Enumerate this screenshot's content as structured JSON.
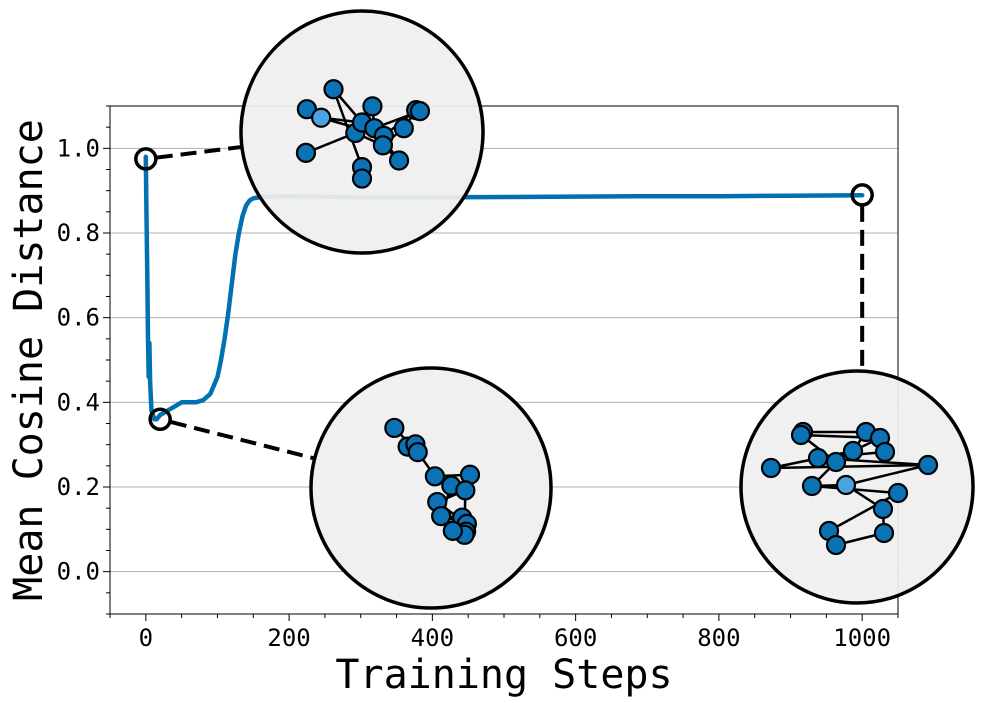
{
  "chart_data": {
    "type": "line",
    "title": "",
    "xlabel": "Training Steps",
    "ylabel": "Mean Cosine Distance",
    "xlim": [
      -50,
      1050
    ],
    "ylim": [
      -0.1,
      1.1
    ],
    "xticks": [
      0,
      200,
      400,
      600,
      800,
      1000
    ],
    "xtick_labels": [
      "0",
      "200",
      "400",
      "600",
      "800",
      "1000"
    ],
    "yticks": [
      0.0,
      0.2,
      0.4,
      0.6,
      0.8,
      1.0
    ],
    "ytick_labels": [
      "0.0",
      "0.2",
      "0.4",
      "0.6",
      "0.8",
      "1.0"
    ],
    "grid": "horizontal",
    "series": [
      {
        "color": "#0072b2",
        "x": [
          0,
          1,
          2,
          3,
          4,
          5,
          6,
          8,
          10,
          12,
          15,
          20,
          30,
          40,
          50,
          60,
          70,
          80,
          90,
          100,
          105,
          110,
          115,
          120,
          125,
          130,
          135,
          140,
          145,
          150,
          160,
          175,
          200,
          250,
          300,
          400,
          500,
          600,
          700,
          800,
          900,
          1000
        ],
        "y": [
          0.98,
          0.84,
          0.7,
          0.55,
          0.46,
          0.54,
          0.45,
          0.38,
          0.37,
          0.36,
          0.36,
          0.37,
          0.38,
          0.39,
          0.4,
          0.4,
          0.4,
          0.405,
          0.42,
          0.46,
          0.5,
          0.55,
          0.61,
          0.68,
          0.75,
          0.8,
          0.84,
          0.865,
          0.877,
          0.882,
          0.885,
          0.886,
          0.887,
          0.886,
          0.884,
          0.884,
          0.885,
          0.886,
          0.887,
          0.887,
          0.888,
          0.889
        ]
      }
    ],
    "markers": [
      {
        "x": 0,
        "y": 0.975
      },
      {
        "x": 20,
        "y": 0.36
      },
      {
        "x": 1000,
        "y": 0.89
      }
    ],
    "insets": [
      {
        "anchor": 0,
        "nodes": [
          [
            -0.3,
            -0.45
          ],
          [
            -0.58,
            -0.24
          ],
          [
            -0.43,
            -0.15
          ],
          [
            0.11,
            -0.27
          ],
          [
            -0.07,
            0.01
          ],
          [
            0.0,
            -0.1
          ],
          [
            0.13,
            -0.04
          ],
          [
            0.23,
            0.04
          ],
          [
            0.44,
            -0.04
          ],
          [
            0.57,
            -0.23
          ],
          [
            0.61,
            -0.22
          ],
          [
            0.22,
            0.14
          ],
          [
            0.39,
            0.3
          ],
          [
            0.0,
            0.37
          ],
          [
            0.0,
            0.49
          ],
          [
            -0.59,
            0.22
          ]
        ],
        "highlight": 2,
        "edges": [
          [
            0,
            5
          ],
          [
            0,
            13
          ],
          [
            1,
            2
          ],
          [
            2,
            5
          ],
          [
            2,
            7
          ],
          [
            3,
            5
          ],
          [
            3,
            6
          ],
          [
            4,
            11
          ],
          [
            5,
            6
          ],
          [
            6,
            10
          ],
          [
            7,
            9
          ],
          [
            8,
            9
          ],
          [
            9,
            10
          ],
          [
            11,
            12
          ],
          [
            13,
            14
          ],
          [
            15,
            4
          ],
          [
            11,
            8
          ],
          [
            6,
            12
          ]
        ]
      },
      {
        "anchor": 1,
        "nodes": [
          [
            -0.47,
            -0.77
          ],
          [
            -0.3,
            -0.53
          ],
          [
            -0.2,
            -0.56
          ],
          [
            -0.17,
            -0.46
          ],
          [
            0.05,
            -0.15
          ],
          [
            0.26,
            -0.03
          ],
          [
            0.5,
            -0.17
          ],
          [
            0.44,
            0.03
          ],
          [
            0.08,
            0.18
          ],
          [
            0.13,
            0.36
          ],
          [
            0.4,
            0.38
          ],
          [
            0.46,
            0.46
          ],
          [
            0.45,
            0.56
          ],
          [
            0.43,
            0.6
          ],
          [
            0.28,
            0.55
          ]
        ],
        "highlight": -1,
        "edges": [
          [
            0,
            3
          ],
          [
            1,
            2
          ],
          [
            2,
            3
          ],
          [
            3,
            4
          ],
          [
            4,
            5
          ],
          [
            5,
            9
          ],
          [
            6,
            4
          ],
          [
            7,
            8
          ],
          [
            8,
            11
          ],
          [
            9,
            10
          ],
          [
            10,
            11
          ],
          [
            11,
            12
          ],
          [
            12,
            13
          ],
          [
            13,
            14
          ],
          [
            14,
            10
          ],
          [
            7,
            13
          ],
          [
            9,
            11
          ]
        ]
      },
      {
        "anchor": 2,
        "nodes": [
          [
            -0.54,
            -0.55
          ],
          [
            -0.56,
            -0.52
          ],
          [
            0.09,
            -0.55
          ],
          [
            0.23,
            -0.49
          ],
          [
            0.28,
            -0.35
          ],
          [
            -0.04,
            -0.36
          ],
          [
            -0.39,
            -0.29
          ],
          [
            -0.21,
            -0.25
          ],
          [
            -0.86,
            -0.19
          ],
          [
            0.71,
            -0.22
          ],
          [
            -0.45,
            -0.01
          ],
          [
            -0.11,
            -0.02
          ],
          [
            0.41,
            0.06
          ],
          [
            0.26,
            0.22
          ],
          [
            -0.28,
            0.44
          ],
          [
            0.27,
            0.46
          ],
          [
            -0.21,
            0.58
          ]
        ],
        "highlight": 11,
        "edges": [
          [
            0,
            2
          ],
          [
            1,
            3
          ],
          [
            2,
            4
          ],
          [
            3,
            5
          ],
          [
            4,
            6
          ],
          [
            5,
            8
          ],
          [
            6,
            9
          ],
          [
            7,
            10
          ],
          [
            8,
            9
          ],
          [
            9,
            11
          ],
          [
            10,
            12
          ],
          [
            11,
            13
          ],
          [
            12,
            14
          ],
          [
            13,
            15
          ],
          [
            14,
            16
          ],
          [
            15,
            16
          ],
          [
            1,
            7
          ],
          [
            2,
            5
          ],
          [
            10,
            11
          ]
        ]
      }
    ]
  }
}
